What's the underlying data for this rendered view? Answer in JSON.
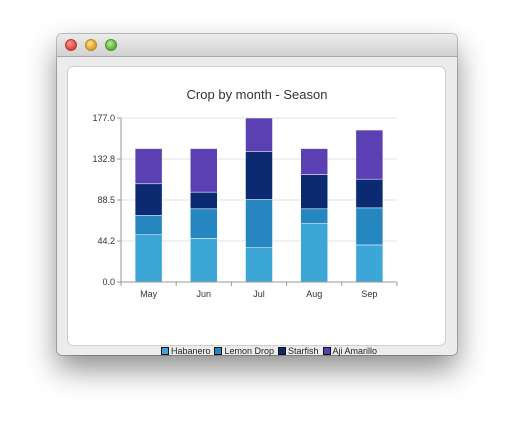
{
  "window": {
    "controls": [
      "close-button",
      "minimize-button",
      "zoom-button"
    ]
  },
  "chart_data": {
    "type": "bar",
    "stacked": true,
    "title": "Crop by month - Season",
    "categories": [
      "May",
      "Jun",
      "Jul",
      "Aug",
      "Sep"
    ],
    "series": [
      {
        "name": "Habanero",
        "color": "#3ca6d6",
        "values": [
          51,
          47,
          37,
          63,
          40
        ]
      },
      {
        "name": "Lemon Drop",
        "color": "#2586c0",
        "values": [
          21,
          32,
          52,
          16,
          40
        ]
      },
      {
        "name": "Starfish",
        "color": "#0c2a72",
        "values": [
          34,
          18,
          52,
          37,
          31
        ]
      },
      {
        "name": "Aji Amarillo",
        "color": "#5b40b4",
        "values": [
          38,
          47,
          36,
          28,
          53
        ]
      }
    ],
    "ylim": [
      0,
      177
    ],
    "yticks": [
      "0.0",
      "44.2",
      "88.5",
      "132.8",
      "177.0"
    ],
    "grid": true,
    "legend": "bottom"
  }
}
